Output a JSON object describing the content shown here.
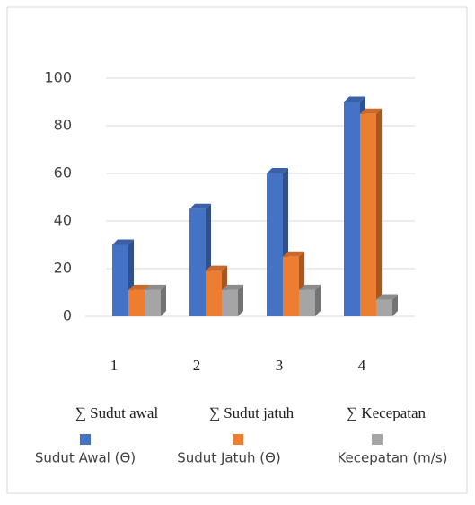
{
  "chart_data": {
    "type": "bar",
    "categories": [
      "1",
      "2",
      "3",
      "4"
    ],
    "series": [
      {
        "name": "Sudut Awal (Θ)",
        "color": "#4472c4",
        "values": [
          30,
          45,
          60,
          90
        ]
      },
      {
        "name": "Sudut Jatuh (Θ)",
        "color": "#ed7d31",
        "values": [
          11,
          19,
          25,
          85
        ]
      },
      {
        "name": "Kecepatan (m/s)",
        "color": "#a5a5a5",
        "values": [
          11,
          11,
          11,
          7
        ]
      }
    ],
    "ylim": [
      0,
      100
    ],
    "yticks": [
      0,
      20,
      40,
      60,
      80,
      100
    ],
    "grid": true,
    "annotations": [
      "∑ Sudut awal",
      "∑ Sudut jatuh",
      "∑ Kecepatan"
    ]
  }
}
